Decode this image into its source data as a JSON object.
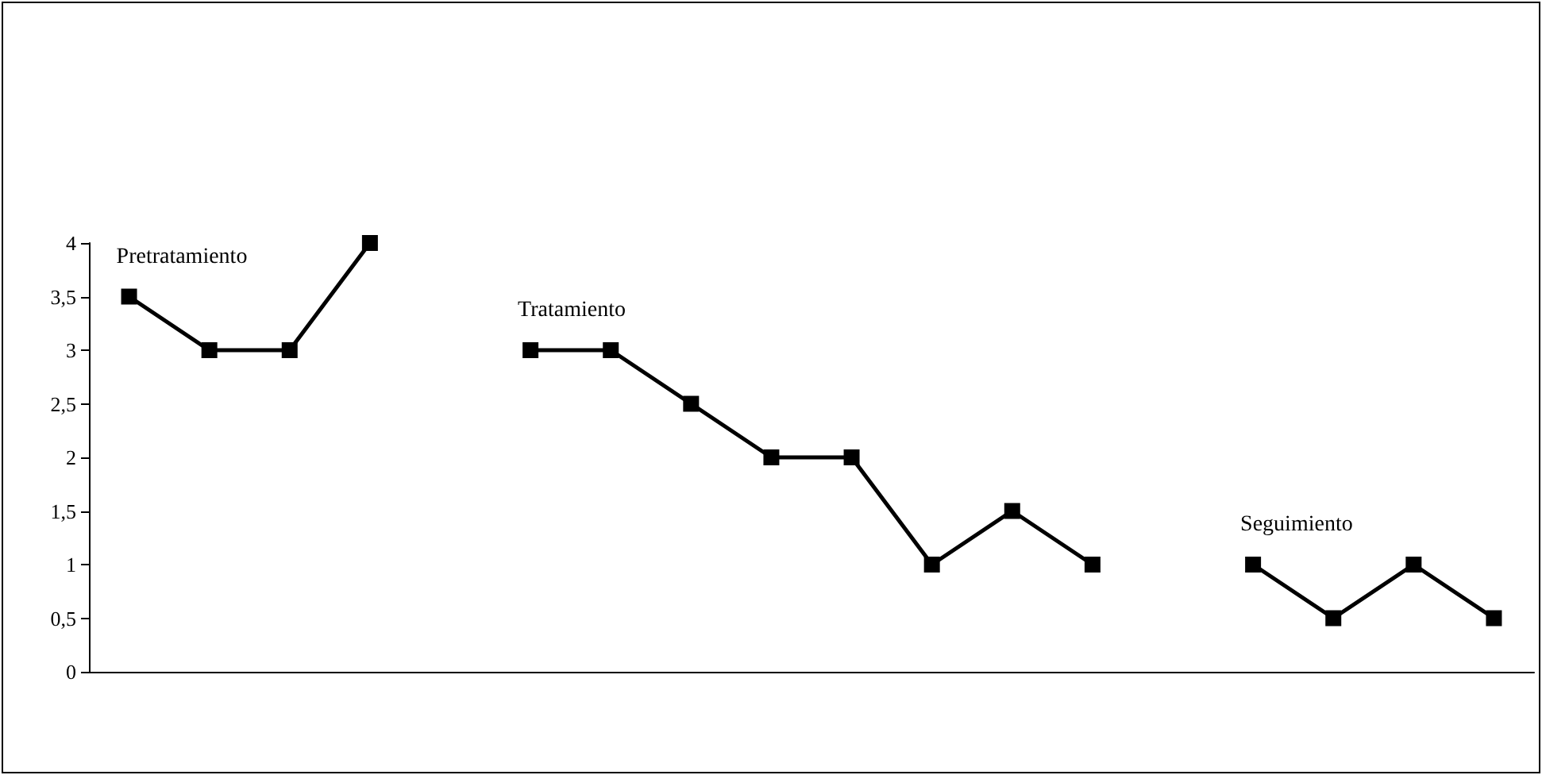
{
  "chart_data": {
    "type": "line",
    "categories": [
      null,
      null,
      null,
      null,
      null,
      null,
      null,
      null,
      null,
      null,
      null,
      null,
      null,
      null,
      null,
      null,
      null,
      null
    ],
    "series": [
      {
        "name": "Pretratamiento",
        "color": "#000000",
        "values": [
          3.5,
          3,
          3,
          4,
          null,
          null,
          null,
          null,
          null,
          null,
          null,
          null,
          null,
          null,
          null,
          null,
          null,
          null
        ]
      },
      {
        "name": "Tratamiento",
        "color": "#000000",
        "values": [
          null,
          null,
          null,
          null,
          null,
          3,
          3,
          2.5,
          2,
          2,
          1,
          1.5,
          1,
          null,
          null,
          null,
          null,
          null
        ]
      },
      {
        "name": "Seguimiento",
        "color": "#000000",
        "values": [
          null,
          null,
          null,
          null,
          null,
          null,
          null,
          null,
          null,
          null,
          null,
          null,
          null,
          null,
          1,
          0.5,
          1,
          0.5
        ]
      }
    ],
    "ylim": [
      0,
      4
    ],
    "yticks": [
      0,
      {
        "value": 0.5,
        "label": "0,5"
      },
      1,
      {
        "value": 1.5,
        "label": "1,5"
      },
      2,
      {
        "value": 2.5,
        "label": "2,5"
      },
      3,
      {
        "value": 3.5,
        "label": "3,5"
      },
      4
    ],
    "grid": false,
    "marker": "square",
    "line_style": "solid"
  }
}
